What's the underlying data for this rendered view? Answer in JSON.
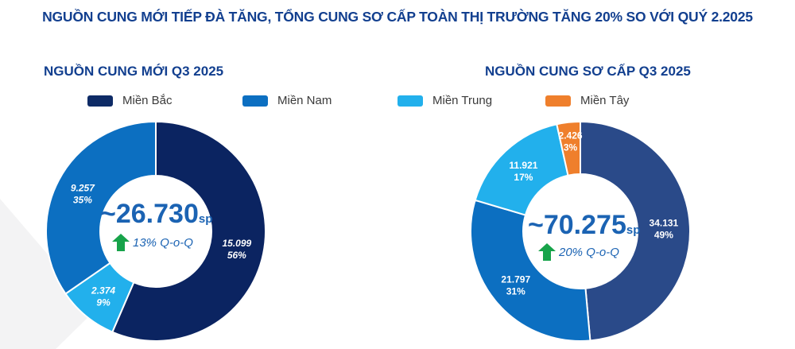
{
  "title": "NGUỒN CUNG MỚI TIẾP ĐÀ TĂNG, TỔNG CUNG SƠ CẤP TOÀN THỊ TRƯỜNG TĂNG 20% SO VỚI QUÝ 2.2025",
  "legend": [
    {
      "name": "Miền Bắc",
      "color": "#0e2b66"
    },
    {
      "name": "Miền Nam",
      "color": "#0c6fc1"
    },
    {
      "name": "Miền Trung",
      "color": "#22b0ec"
    },
    {
      "name": "Miền Tây",
      "color": "#ef7f2c"
    }
  ],
  "chart_data": [
    {
      "type": "pie",
      "donut": true,
      "title": "NGUỒN CUNG MỚI Q3 2025",
      "center_value": "~26.730",
      "center_unit": "sp",
      "growth": "13% Q-o-Q",
      "growth_direction": "up",
      "slices": [
        {
          "name": "Miền Bắc",
          "value": 15099,
          "value_label": "15.099",
          "percent_label": "56%",
          "color": "#0b2461"
        },
        {
          "name": "Miền Trung",
          "value": 2374,
          "value_label": "2.374",
          "percent_label": "9%",
          "color": "#22b0ec"
        },
        {
          "name": "Miền Nam",
          "value": 9257,
          "value_label": "9.257",
          "percent_label": "35%",
          "color": "#0c6fc1"
        }
      ]
    },
    {
      "type": "pie",
      "donut": true,
      "title": "NGUỒN CUNG SƠ CẤP Q3 2025",
      "center_value": "~70.275",
      "center_unit": "sp",
      "growth": "20% Q-o-Q",
      "growth_direction": "up",
      "slices": [
        {
          "name": "Miền Bắc",
          "value": 34131,
          "value_label": "34.131",
          "percent_label": "49%",
          "color": "#2a4a89"
        },
        {
          "name": "Miền Nam",
          "value": 21797,
          "value_label": "21.797",
          "percent_label": "31%",
          "color": "#0c6fc1"
        },
        {
          "name": "Miền Trung",
          "value": 11921,
          "value_label": "11.921",
          "percent_label": "17%",
          "color": "#22b0ec"
        },
        {
          "name": "Miền Tây",
          "value": 2426,
          "value_label": "2.426",
          "percent_label": "3%",
          "color": "#ef7f2c"
        }
      ]
    }
  ]
}
